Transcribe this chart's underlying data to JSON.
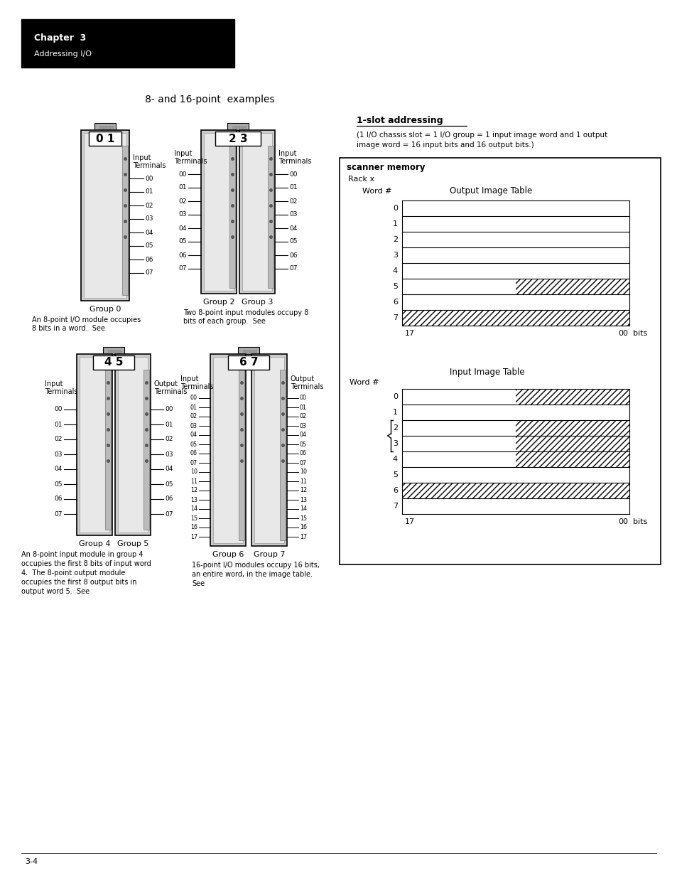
{
  "page_bg": "#ffffff",
  "header_bg": "#000000",
  "header_text_color": "#ffffff",
  "header_line1": "Chapter  3",
  "header_line2": "Addressing I/O",
  "page_title": "8- and 16-point  examples",
  "section_title": "1-slot addressing",
  "section_desc_1": "(1 I/O chassis slot = 1 I/O group = 1 input image word and 1 output",
  "section_desc_2": "image word = 16 input bits and 16 output bits.)",
  "scanner_memory_title": "scanner memory",
  "rack_label": "Rack x",
  "output_table_title": "Output Image Table",
  "input_table_title": "Input Image Table",
  "word_label": "Word #",
  "bits_label": "bits",
  "bit_17": "17",
  "bit_00": "00",
  "footer_page": "3-4",
  "term_labels_8": [
    "00",
    "01",
    "02",
    "03",
    "04",
    "05",
    "06",
    "07"
  ],
  "term_labels_16": [
    "00",
    "01",
    "02",
    "03",
    "04",
    "05",
    "06",
    "07",
    "10",
    "11",
    "12",
    "13",
    "14",
    "15",
    "16",
    "17"
  ]
}
